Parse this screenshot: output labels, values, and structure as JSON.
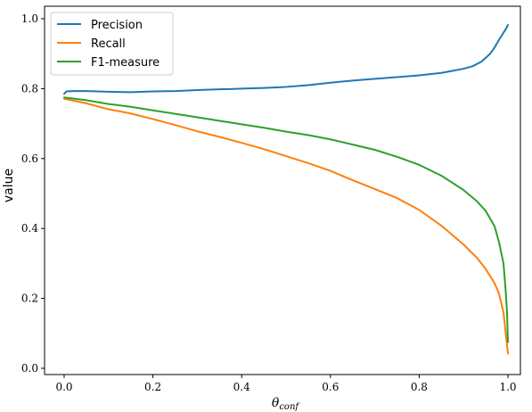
{
  "chart_data": {
    "type": "line",
    "xlabel": "θ_conf",
    "xlabel_main": "θ",
    "xlabel_sub": "conf",
    "ylabel": "value",
    "xlim": [
      0.0,
      1.0
    ],
    "ylim": [
      0.0,
      1.0
    ],
    "x_ticks": [
      0.0,
      0.2,
      0.4,
      0.6,
      0.8,
      1.0
    ],
    "x_tick_labels": [
      "0.0",
      "0.2",
      "0.4",
      "0.6",
      "0.8",
      "1.0"
    ],
    "y_ticks": [
      0.0,
      0.2,
      0.4,
      0.6,
      0.8,
      1.0
    ],
    "y_tick_labels": [
      "0.0",
      "0.2",
      "0.4",
      "0.6",
      "0.8",
      "1.0"
    ],
    "grid": false,
    "legend_position": "top-left",
    "series": [
      {
        "name": "Precision",
        "color": "#1f77b4",
        "points": [
          [
            0.0,
            0.785
          ],
          [
            0.005,
            0.792
          ],
          [
            0.02,
            0.793
          ],
          [
            0.05,
            0.793
          ],
          [
            0.1,
            0.791
          ],
          [
            0.15,
            0.79
          ],
          [
            0.2,
            0.792
          ],
          [
            0.25,
            0.793
          ],
          [
            0.3,
            0.796
          ],
          [
            0.35,
            0.798
          ],
          [
            0.4,
            0.8
          ],
          [
            0.45,
            0.802
          ],
          [
            0.5,
            0.805
          ],
          [
            0.55,
            0.81
          ],
          [
            0.6,
            0.817
          ],
          [
            0.65,
            0.823
          ],
          [
            0.7,
            0.828
          ],
          [
            0.75,
            0.833
          ],
          [
            0.8,
            0.838
          ],
          [
            0.85,
            0.845
          ],
          [
            0.9,
            0.857
          ],
          [
            0.92,
            0.864
          ],
          [
            0.94,
            0.877
          ],
          [
            0.96,
            0.9
          ],
          [
            0.97,
            0.918
          ],
          [
            0.98,
            0.94
          ],
          [
            0.99,
            0.96
          ],
          [
            0.995,
            0.97
          ],
          [
            1.0,
            0.982
          ]
        ]
      },
      {
        "name": "Recall",
        "color": "#ff7f0e",
        "points": [
          [
            0.0,
            0.771
          ],
          [
            0.05,
            0.758
          ],
          [
            0.1,
            0.741
          ],
          [
            0.15,
            0.729
          ],
          [
            0.2,
            0.713
          ],
          [
            0.25,
            0.696
          ],
          [
            0.3,
            0.678
          ],
          [
            0.35,
            0.662
          ],
          [
            0.4,
            0.645
          ],
          [
            0.45,
            0.627
          ],
          [
            0.5,
            0.607
          ],
          [
            0.55,
            0.587
          ],
          [
            0.6,
            0.565
          ],
          [
            0.65,
            0.538
          ],
          [
            0.7,
            0.513
          ],
          [
            0.75,
            0.487
          ],
          [
            0.8,
            0.453
          ],
          [
            0.85,
            0.408
          ],
          [
            0.9,
            0.354
          ],
          [
            0.93,
            0.316
          ],
          [
            0.95,
            0.284
          ],
          [
            0.97,
            0.243
          ],
          [
            0.98,
            0.213
          ],
          [
            0.99,
            0.16
          ],
          [
            0.995,
            0.1
          ],
          [
            1.0,
            0.042
          ]
        ]
      },
      {
        "name": "F1-measure",
        "color": "#2ca02c",
        "points": [
          [
            0.0,
            0.775
          ],
          [
            0.05,
            0.767
          ],
          [
            0.1,
            0.756
          ],
          [
            0.15,
            0.748
          ],
          [
            0.2,
            0.738
          ],
          [
            0.25,
            0.728
          ],
          [
            0.3,
            0.718
          ],
          [
            0.35,
            0.708
          ],
          [
            0.4,
            0.698
          ],
          [
            0.45,
            0.688
          ],
          [
            0.5,
            0.677
          ],
          [
            0.55,
            0.667
          ],
          [
            0.6,
            0.655
          ],
          [
            0.65,
            0.64
          ],
          [
            0.7,
            0.625
          ],
          [
            0.75,
            0.605
          ],
          [
            0.8,
            0.582
          ],
          [
            0.85,
            0.551
          ],
          [
            0.9,
            0.51
          ],
          [
            0.93,
            0.478
          ],
          [
            0.95,
            0.45
          ],
          [
            0.97,
            0.406
          ],
          [
            0.98,
            0.36
          ],
          [
            0.99,
            0.3
          ],
          [
            0.995,
            0.22
          ],
          [
            0.998,
            0.16
          ],
          [
            1.0,
            0.075
          ]
        ]
      }
    ]
  }
}
